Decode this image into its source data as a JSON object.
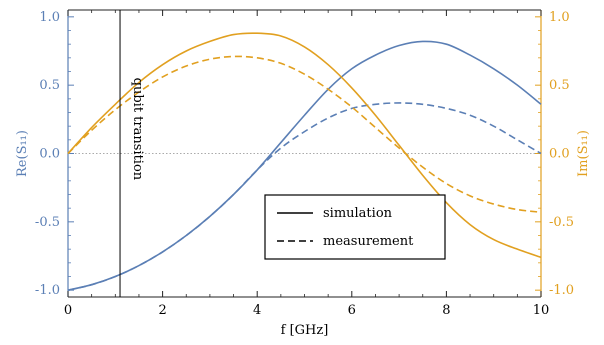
{
  "chart_data": {
    "type": "line",
    "xlabel": "f [GHz]",
    "ylabel_left": "Re(S₁₁)",
    "ylabel_right": "Im(S₁₁)",
    "xlim": [
      0,
      10
    ],
    "ylim": [
      -1.05,
      1.05
    ],
    "x_ticks": [
      "0",
      "2",
      "4",
      "6",
      "8",
      "10"
    ],
    "y_ticks_left": [
      "-1.0",
      "-0.5",
      "0.0",
      "0.5",
      "1.0"
    ],
    "y_ticks_right": [
      "-1.0",
      "-0.5",
      "0.0",
      "0.5",
      "1.0"
    ],
    "annotation": {
      "text": "qubit transition",
      "x": 1.1
    },
    "zero_line": true,
    "legend": {
      "position": "lower-center",
      "entries": [
        {
          "label": "simulation",
          "style": "solid"
        },
        {
          "label": "measurement",
          "style": "dashed"
        }
      ]
    },
    "colors": {
      "re": "#5b7fb5",
      "im": "#e1a020"
    },
    "x": [
      0,
      0.5,
      1,
      1.5,
      2,
      2.5,
      3,
      3.5,
      4,
      4.5,
      5,
      5.5,
      6,
      6.5,
      7,
      7.5,
      8,
      8.5,
      9,
      9.5,
      10
    ],
    "series": [
      {
        "quantity": "Re",
        "style": "solid",
        "values": [
          -1.0,
          -0.96,
          -0.9,
          -0.82,
          -0.72,
          -0.6,
          -0.46,
          -0.3,
          -0.12,
          0.08,
          0.28,
          0.47,
          0.62,
          0.72,
          0.79,
          0.82,
          0.8,
          0.72,
          0.62,
          0.5,
          0.36
        ]
      },
      {
        "quantity": "Re",
        "style": "dashed",
        "values": [
          -1.0,
          -0.96,
          -0.9,
          -0.82,
          -0.72,
          -0.6,
          -0.46,
          -0.3,
          -0.12,
          0.04,
          0.16,
          0.26,
          0.33,
          0.36,
          0.37,
          0.36,
          0.33,
          0.28,
          0.2,
          0.1,
          0.0
        ]
      },
      {
        "quantity": "Im",
        "style": "solid",
        "values": [
          0.0,
          0.19,
          0.36,
          0.52,
          0.65,
          0.75,
          0.82,
          0.87,
          0.88,
          0.86,
          0.78,
          0.65,
          0.48,
          0.28,
          0.06,
          -0.16,
          -0.36,
          -0.52,
          -0.63,
          -0.7,
          -0.76
        ]
      },
      {
        "quantity": "Im",
        "style": "dashed",
        "values": [
          0.0,
          0.17,
          0.32,
          0.45,
          0.56,
          0.64,
          0.69,
          0.71,
          0.7,
          0.66,
          0.58,
          0.47,
          0.34,
          0.19,
          0.04,
          -0.1,
          -0.22,
          -0.31,
          -0.37,
          -0.41,
          -0.43
        ]
      }
    ]
  }
}
